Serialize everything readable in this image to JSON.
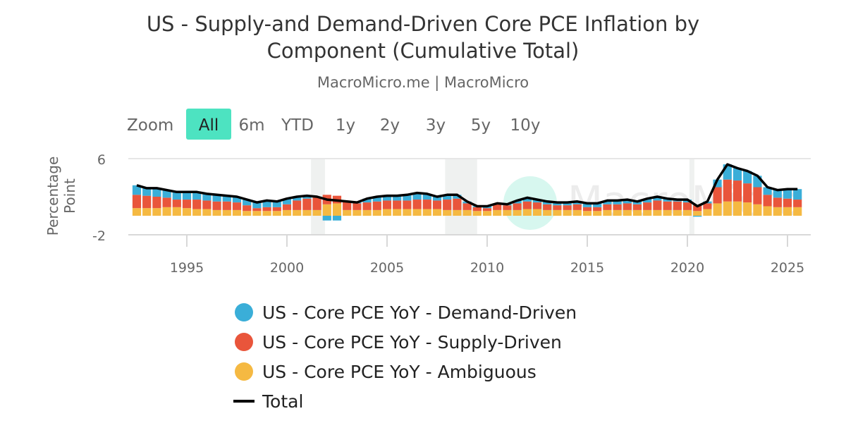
{
  "chart_data": {
    "type": "bar",
    "title": "US - Supply-and Demand-Driven Core PCE Inflation by Component (Cumulative Total)",
    "title_lines": [
      "US - Supply-and Demand-Driven Core PCE Inflation by",
      "Component (Cumulative Total)"
    ],
    "subtitle": "MacroMicro.me | MacroMicro",
    "watermark": "MacroMicro",
    "ylabel": "Percentage Point",
    "ylabel_lines": [
      "Percentage",
      "Point"
    ],
    "ylim": [
      -2,
      6
    ],
    "yticks": [
      "6",
      "-2"
    ],
    "xticks": [
      "1995",
      "2000",
      "2005",
      "2010",
      "2015",
      "2020",
      "2025"
    ],
    "stacked": true,
    "grid": true,
    "legend_position": "bottom",
    "recessions": [
      [
        2001.2,
        2001.9
      ],
      [
        2007.9,
        2009.5
      ],
      [
        2020.1,
        2020.35
      ]
    ],
    "x": [
      1992.5,
      1993,
      1993.5,
      1994,
      1994.5,
      1995,
      1995.5,
      1996,
      1996.5,
      1997,
      1997.5,
      1998,
      1998.5,
      1999,
      1999.5,
      2000,
      2000.5,
      2001,
      2001.5,
      2002,
      2002.5,
      2003,
      2003.5,
      2004,
      2004.5,
      2005,
      2005.5,
      2006,
      2006.5,
      2007,
      2007.5,
      2008,
      2008.5,
      2009,
      2009.5,
      2010,
      2010.5,
      2011,
      2011.5,
      2012,
      2012.5,
      2013,
      2013.5,
      2014,
      2014.5,
      2015,
      2015.5,
      2016,
      2016.5,
      2017,
      2017.5,
      2018,
      2018.5,
      2019,
      2019.5,
      2020,
      2020.5,
      2021,
      2021.5,
      2022,
      2022.5,
      2023,
      2023.5,
      2024,
      2024.5,
      2025,
      2025.5
    ],
    "series": [
      {
        "name": "US - Core PCE YoY - Demand-Driven",
        "color": "#3aaed8",
        "kind": "bar",
        "values": [
          1.0,
          0.8,
          0.9,
          0.8,
          0.8,
          0.8,
          0.8,
          0.7,
          0.7,
          0.6,
          0.6,
          0.6,
          0.6,
          0.7,
          0.6,
          0.6,
          0.4,
          0.3,
          0.1,
          -0.5,
          -0.5,
          0.0,
          0.1,
          0.4,
          0.5,
          0.5,
          0.5,
          0.6,
          0.7,
          0.6,
          0.4,
          0.5,
          0.4,
          0.2,
          0.1,
          0.2,
          0.1,
          0.1,
          0.3,
          0.4,
          0.3,
          0.3,
          0.3,
          0.3,
          0.3,
          0.4,
          0.4,
          0.4,
          0.4,
          0.4,
          0.3,
          0.4,
          0.4,
          0.3,
          0.2,
          0.3,
          -0.1,
          0.2,
          0.8,
          1.6,
          1.3,
          1.3,
          1.2,
          0.8,
          0.8,
          1.0,
          1.1
        ]
      },
      {
        "name": "US - Core PCE YoY - Supply-Driven",
        "color": "#e9553b",
        "kind": "bar",
        "values": [
          1.4,
          1.3,
          1.2,
          1.0,
          0.8,
          0.9,
          1.0,
          0.9,
          0.9,
          0.9,
          0.8,
          0.6,
          0.3,
          0.4,
          0.4,
          0.6,
          1.0,
          1.2,
          1.3,
          1.0,
          0.8,
          0.9,
          0.7,
          0.8,
          0.9,
          0.9,
          0.9,
          0.9,
          1.0,
          1.0,
          0.9,
          1.1,
          1.2,
          0.7,
          0.4,
          0.3,
          0.6,
          0.5,
          0.7,
          0.8,
          0.7,
          0.6,
          0.5,
          0.5,
          0.6,
          0.4,
          0.4,
          0.6,
          0.6,
          0.7,
          0.6,
          0.8,
          1.0,
          0.9,
          0.9,
          0.8,
          0.6,
          0.6,
          1.7,
          2.3,
          2.2,
          2.0,
          1.8,
          1.2,
          1.0,
          0.9,
          0.8
        ]
      },
      {
        "name": "US - Core PCE YoY - Ambiguous",
        "color": "#f5b942",
        "kind": "bar",
        "values": [
          0.8,
          0.8,
          0.8,
          0.9,
          0.9,
          0.8,
          0.7,
          0.7,
          0.6,
          0.6,
          0.6,
          0.5,
          0.5,
          0.5,
          0.5,
          0.6,
          0.6,
          0.6,
          0.6,
          1.2,
          1.3,
          0.6,
          0.6,
          0.6,
          0.6,
          0.7,
          0.7,
          0.7,
          0.7,
          0.7,
          0.7,
          0.6,
          0.6,
          0.6,
          0.5,
          0.5,
          0.6,
          0.6,
          0.6,
          0.7,
          0.7,
          0.6,
          0.6,
          0.6,
          0.6,
          0.5,
          0.5,
          0.6,
          0.6,
          0.6,
          0.6,
          0.6,
          0.6,
          0.6,
          0.6,
          0.6,
          0.5,
          0.7,
          1.3,
          1.5,
          1.5,
          1.4,
          1.2,
          1.0,
          0.9,
          0.9,
          0.9
        ]
      },
      {
        "name": "Total",
        "color": "#000000",
        "kind": "line",
        "values": [
          3.2,
          2.9,
          2.9,
          2.7,
          2.5,
          2.5,
          2.5,
          2.3,
          2.2,
          2.1,
          2.0,
          1.7,
          1.4,
          1.6,
          1.5,
          1.8,
          2.0,
          2.1,
          2.0,
          1.7,
          1.6,
          1.5,
          1.4,
          1.8,
          2.0,
          2.1,
          2.1,
          2.2,
          2.4,
          2.3,
          2.0,
          2.2,
          2.2,
          1.5,
          1.0,
          1.0,
          1.3,
          1.2,
          1.6,
          1.9,
          1.7,
          1.5,
          1.4,
          1.4,
          1.5,
          1.3,
          1.3,
          1.6,
          1.6,
          1.7,
          1.5,
          1.8,
          2.0,
          1.8,
          1.7,
          1.7,
          1.0,
          1.5,
          3.8,
          5.4,
          5.0,
          4.7,
          4.2,
          3.0,
          2.7,
          2.8,
          2.8
        ]
      }
    ]
  },
  "zoom": {
    "label": "Zoom",
    "buttons": [
      "All",
      "6m",
      "YTD",
      "1y",
      "2y",
      "3y",
      "5y",
      "10y"
    ],
    "active": "All",
    "active_color": "#4de3c1"
  },
  "legend": [
    {
      "label": "US - Core PCE YoY - Demand-Driven",
      "color": "#3aaed8",
      "symbol": "circle"
    },
    {
      "label": "US - Core PCE YoY - Supply-Driven",
      "color": "#e9553b",
      "symbol": "circle"
    },
    {
      "label": "US - Core PCE YoY - Ambiguous",
      "color": "#f5b942",
      "symbol": "circle"
    },
    {
      "label": "Total",
      "color": "#000000",
      "symbol": "line"
    }
  ]
}
